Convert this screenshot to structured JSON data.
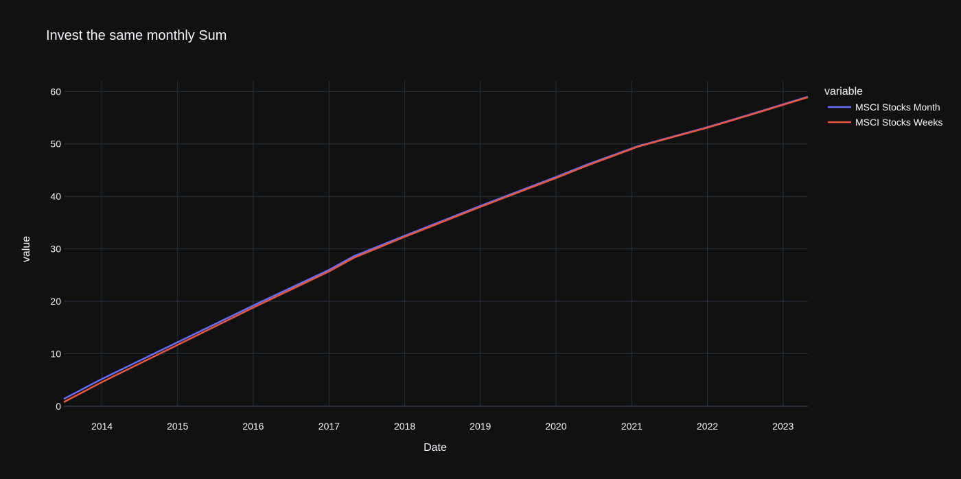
{
  "chart_data": {
    "type": "line",
    "title": "Invest the same monthly Sum",
    "xlabel": "Date",
    "ylabel": "value",
    "xlim": [
      "2013-07-01",
      "2023-05-01"
    ],
    "ylim": [
      0,
      62
    ],
    "x_ticks": [
      "2014",
      "2015",
      "2016",
      "2017",
      "2018",
      "2019",
      "2020",
      "2021",
      "2022",
      "2023"
    ],
    "y_ticks": [
      0,
      10,
      20,
      30,
      40,
      50,
      60
    ],
    "grid": true,
    "legend": {
      "title": "variable",
      "position": "right"
    },
    "series": [
      {
        "name": "MSCI Stocks Month",
        "color": "#636efa",
        "points": [
          {
            "x": "2013-07-01",
            "y": 1.4
          },
          {
            "x": "2014-01-01",
            "y": 5.2
          },
          {
            "x": "2015-01-01",
            "y": 12.2
          },
          {
            "x": "2016-01-01",
            "y": 19.2
          },
          {
            "x": "2017-01-01",
            "y": 26.0
          },
          {
            "x": "2017-05-01",
            "y": 28.6
          },
          {
            "x": "2018-01-01",
            "y": 32.5
          },
          {
            "x": "2019-01-01",
            "y": 38.2
          },
          {
            "x": "2020-01-01",
            "y": 43.7
          },
          {
            "x": "2020-06-01",
            "y": 46.1
          },
          {
            "x": "2021-02-01",
            "y": 49.6
          },
          {
            "x": "2022-01-01",
            "y": 53.2
          },
          {
            "x": "2022-08-01",
            "y": 55.7
          },
          {
            "x": "2023-05-01",
            "y": 59.0
          }
        ]
      },
      {
        "name": "MSCI Stocks Weeks",
        "color": "#ef553b",
        "points": [
          {
            "x": "2013-07-01",
            "y": 0.8
          },
          {
            "x": "2014-01-01",
            "y": 4.6
          },
          {
            "x": "2015-01-01",
            "y": 11.7
          },
          {
            "x": "2016-01-01",
            "y": 18.8
          },
          {
            "x": "2017-01-01",
            "y": 25.7
          },
          {
            "x": "2017-05-01",
            "y": 28.3
          },
          {
            "x": "2018-01-01",
            "y": 32.3
          },
          {
            "x": "2019-01-01",
            "y": 38.0
          },
          {
            "x": "2020-01-01",
            "y": 43.5
          },
          {
            "x": "2020-06-01",
            "y": 45.9
          },
          {
            "x": "2021-02-01",
            "y": 49.5
          },
          {
            "x": "2022-01-01",
            "y": 53.1
          },
          {
            "x": "2022-08-01",
            "y": 55.6
          },
          {
            "x": "2023-05-01",
            "y": 58.9
          }
        ]
      }
    ]
  }
}
